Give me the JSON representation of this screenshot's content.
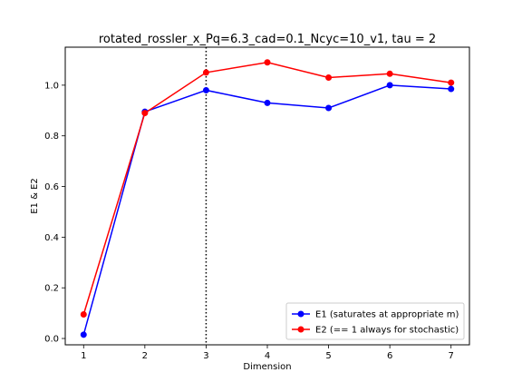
{
  "chart_data": {
    "type": "line",
    "title": "rotated_rossler_x_Pq=6.3_cad=0.1_Ncyc=10_v1, tau = 2",
    "xlabel": "Dimension",
    "ylabel": "E1 & E2",
    "xlim": [
      0.7,
      7.3
    ],
    "ylim": [
      -0.025,
      1.15
    ],
    "xticks": [
      1,
      2,
      3,
      4,
      5,
      6,
      7
    ],
    "yticks": [
      0.0,
      0.2,
      0.4,
      0.6,
      0.8,
      1.0
    ],
    "x": [
      1,
      2,
      3,
      4,
      5,
      6,
      7
    ],
    "series": [
      {
        "name": "E1 (saturates at appropriate m)",
        "color": "#0000ff",
        "values": [
          0.015,
          0.895,
          0.98,
          0.93,
          0.91,
          1.0,
          0.985
        ]
      },
      {
        "name": "E2 (== 1 always for stochastic)",
        "color": "#ff0000",
        "values": [
          0.095,
          0.89,
          1.05,
          1.09,
          1.03,
          1.045,
          1.01
        ]
      }
    ],
    "vline": {
      "x": 3,
      "style": "dotted",
      "color": "#000000"
    },
    "grid": false,
    "legend": "lower-right"
  }
}
